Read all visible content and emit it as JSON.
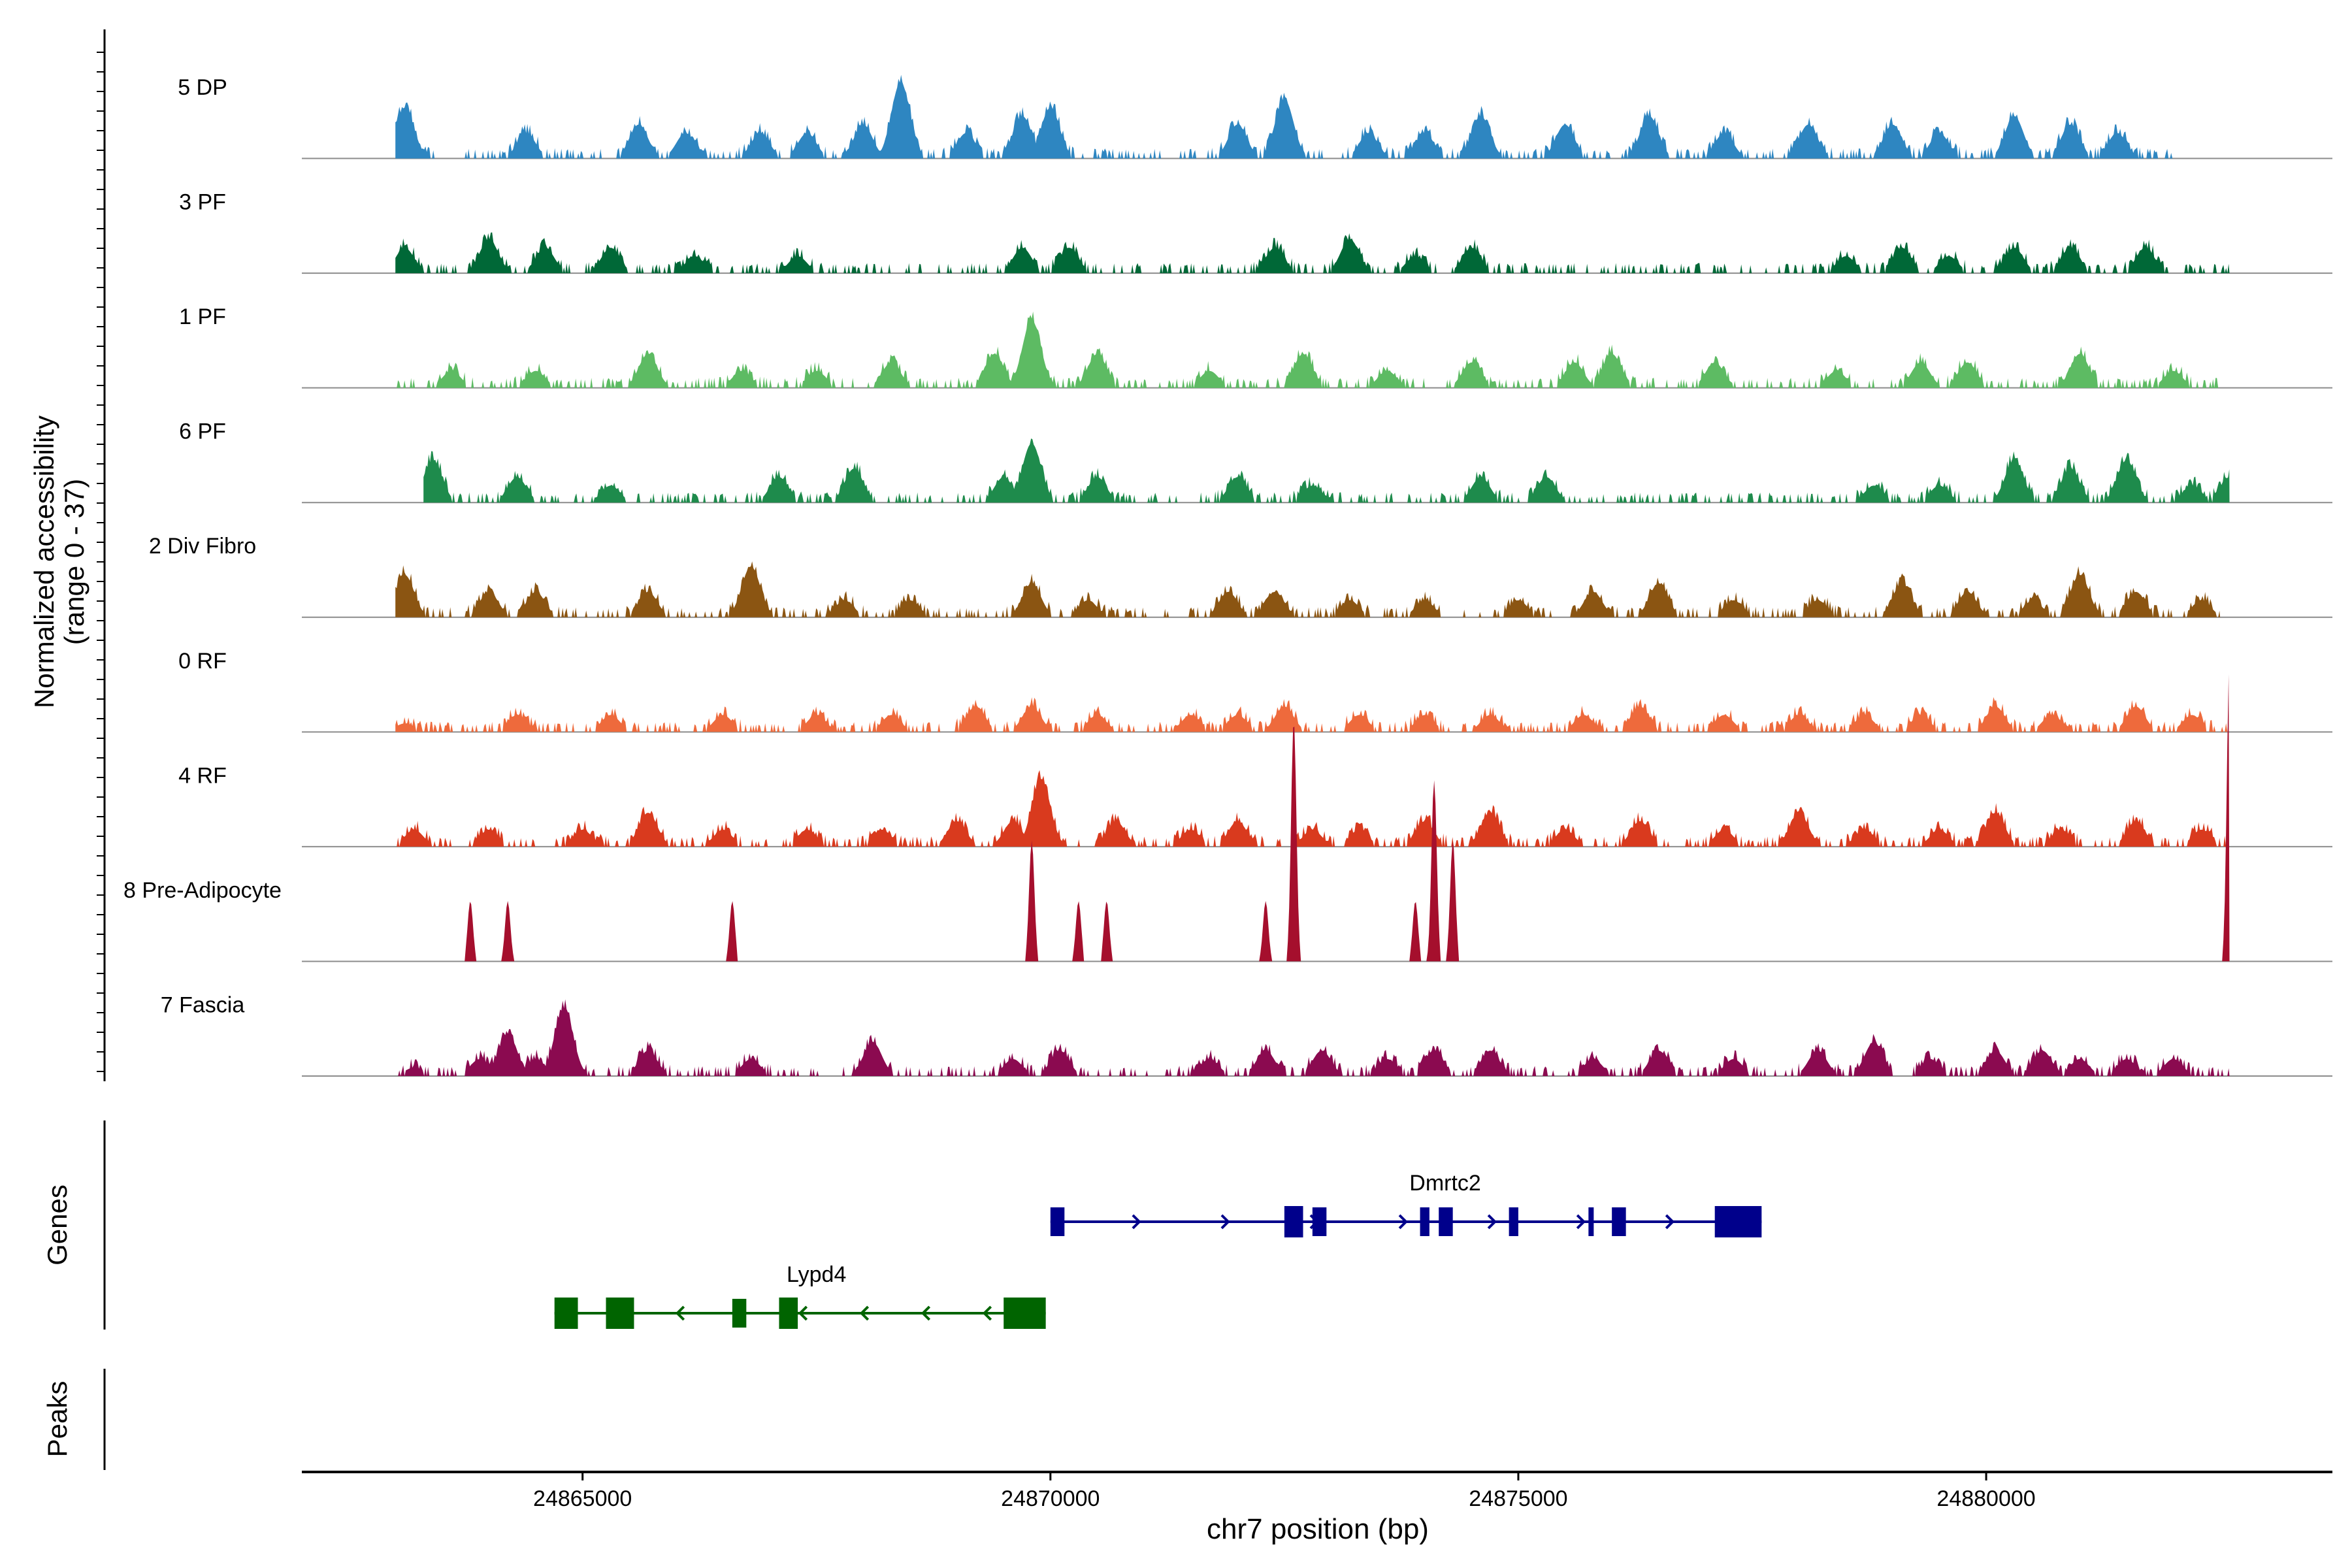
{
  "chart_data": {
    "type": "area",
    "title": "",
    "chromosome": "chr7",
    "xlabel": "chr7 position (bp)",
    "ylabel": "Normalized accessibility\n(range 0 - 37)",
    "xlim": [
      24862000,
      24883700
    ],
    "xticks": [
      24865000,
      24870000,
      24875000,
      24880000
    ],
    "ylim": [
      0,
      37
    ],
    "tracks": [
      {
        "name": "5 DP",
        "color": "#2E86C1",
        "start": 24863000,
        "peaks": [
          [
            24863100,
            6
          ],
          [
            24864400,
            3
          ],
          [
            24865600,
            4
          ],
          [
            24866100,
            3
          ],
          [
            24866900,
            3
          ],
          [
            24867400,
            3
          ],
          [
            24868000,
            4
          ],
          [
            24868400,
            9
          ],
          [
            24869100,
            3
          ],
          [
            24869700,
            5
          ],
          [
            24870000,
            6
          ],
          [
            24872000,
            4
          ],
          [
            24872500,
            7
          ],
          [
            24873400,
            3
          ],
          [
            24874000,
            3
          ],
          [
            24874600,
            5
          ],
          [
            24875500,
            4
          ],
          [
            24876400,
            5
          ],
          [
            24877200,
            3
          ],
          [
            24878100,
            4
          ],
          [
            24879000,
            4
          ],
          [
            24879500,
            3
          ],
          [
            24880300,
            5
          ],
          [
            24880900,
            4
          ],
          [
            24881400,
            3
          ]
        ],
        "end": 24882000
      },
      {
        "name": "3 PF",
        "color": "#006837",
        "start": 24863000,
        "peaks": [
          [
            24863100,
            3
          ],
          [
            24864000,
            4
          ],
          [
            24864600,
            3
          ],
          [
            24865300,
            3
          ],
          [
            24866200,
            2
          ],
          [
            24867300,
            2
          ],
          [
            24869700,
            3
          ],
          [
            24870200,
            3
          ],
          [
            24872400,
            3
          ],
          [
            24873200,
            4
          ],
          [
            24873900,
            2
          ],
          [
            24874500,
            3
          ],
          [
            24878500,
            2
          ],
          [
            24879100,
            3
          ],
          [
            24879600,
            2
          ],
          [
            24880300,
            3
          ],
          [
            24880900,
            3
          ],
          [
            24881700,
            3
          ]
        ],
        "end": 24882600
      },
      {
        "name": "1 PF",
        "color": "#5DBB63",
        "start": 24863000,
        "peaks": [
          [
            24863600,
            2
          ],
          [
            24864500,
            2
          ],
          [
            24865700,
            4
          ],
          [
            24866700,
            2
          ],
          [
            24867500,
            2
          ],
          [
            24868300,
            3
          ],
          [
            24869400,
            4
          ],
          [
            24869800,
            8
          ],
          [
            24870500,
            4
          ],
          [
            24871700,
            2
          ],
          [
            24872700,
            4
          ],
          [
            24873600,
            2
          ],
          [
            24874500,
            3
          ],
          [
            24875600,
            3
          ],
          [
            24876000,
            4
          ],
          [
            24877100,
            3
          ],
          [
            24878400,
            2
          ],
          [
            24879300,
            3
          ],
          [
            24879800,
            3
          ],
          [
            24881000,
            4
          ],
          [
            24882000,
            2
          ]
        ],
        "end": 24882600
      },
      {
        "name": "6 PF",
        "color": "#1E8B4C",
        "start": 24863300,
        "peaks": [
          [
            24863400,
            5
          ],
          [
            24864300,
            3
          ],
          [
            24865300,
            2
          ],
          [
            24867100,
            3
          ],
          [
            24867900,
            4
          ],
          [
            24869500,
            3
          ],
          [
            24869800,
            7
          ],
          [
            24870500,
            3
          ],
          [
            24872000,
            3
          ],
          [
            24872800,
            2
          ],
          [
            24874600,
            3
          ],
          [
            24875300,
            3
          ],
          [
            24878800,
            2
          ],
          [
            24879500,
            2
          ],
          [
            24880300,
            5
          ],
          [
            24880900,
            4
          ],
          [
            24881500,
            5
          ],
          [
            24882200,
            2
          ],
          [
            24882600,
            3
          ]
        ],
        "end": 24882600
      },
      {
        "name": "2 Div Fibro",
        "color": "#8B5512",
        "start": 24863000,
        "peaks": [
          [
            24863100,
            5
          ],
          [
            24864000,
            3
          ],
          [
            24864500,
            3
          ],
          [
            24865700,
            3
          ],
          [
            24866800,
            6
          ],
          [
            24867800,
            2
          ],
          [
            24868500,
            2
          ],
          [
            24869800,
            4
          ],
          [
            24870400,
            2
          ],
          [
            24871900,
            3
          ],
          [
            24872400,
            3
          ],
          [
            24873200,
            2
          ],
          [
            24874000,
            2
          ],
          [
            24875000,
            2
          ],
          [
            24875800,
            3
          ],
          [
            24876500,
            4
          ],
          [
            24877300,
            2
          ],
          [
            24878200,
            2
          ],
          [
            24879100,
            4
          ],
          [
            24879800,
            3
          ],
          [
            24880500,
            2
          ],
          [
            24881000,
            5
          ],
          [
            24881600,
            3
          ],
          [
            24882300,
            2
          ]
        ],
        "end": 24882500
      },
      {
        "name": "0 RF",
        "color": "#EE6A3C",
        "start": 24863000,
        "peaks": [
          [
            24863100,
            1
          ],
          [
            24864300,
            2
          ],
          [
            24865300,
            2
          ],
          [
            24866500,
            2
          ],
          [
            24867500,
            2
          ],
          [
            24868300,
            2
          ],
          [
            24869200,
            3
          ],
          [
            24869800,
            3
          ],
          [
            24870500,
            2
          ],
          [
            24871500,
            2
          ],
          [
            24872000,
            2
          ],
          [
            24872500,
            3
          ],
          [
            24873300,
            2
          ],
          [
            24874000,
            2
          ],
          [
            24874700,
            2
          ],
          [
            24875700,
            2
          ],
          [
            24876300,
            3
          ],
          [
            24877200,
            2
          ],
          [
            24878000,
            2
          ],
          [
            24878700,
            2
          ],
          [
            24879300,
            2
          ],
          [
            24880100,
            3
          ],
          [
            24880700,
            2
          ],
          [
            24881600,
            3
          ],
          [
            24882200,
            2
          ]
        ],
        "end": 24882600
      },
      {
        "name": "4 RF",
        "color": "#D93A1E",
        "start": 24863000,
        "peaks": [
          [
            24863200,
            2
          ],
          [
            24864000,
            2
          ],
          [
            24865000,
            2
          ],
          [
            24865700,
            4
          ],
          [
            24866500,
            2
          ],
          [
            24867400,
            2
          ],
          [
            24868200,
            2
          ],
          [
            24869000,
            3
          ],
          [
            24869600,
            3
          ],
          [
            24869900,
            8
          ],
          [
            24870700,
            3
          ],
          [
            24871500,
            2
          ],
          [
            24872000,
            3
          ],
          [
            24872800,
            2
          ],
          [
            24873300,
            2
          ],
          [
            24874000,
            3
          ],
          [
            24874700,
            4
          ],
          [
            24875500,
            2
          ],
          [
            24876300,
            3
          ],
          [
            24877200,
            2
          ],
          [
            24878000,
            4
          ],
          [
            24878700,
            2
          ],
          [
            24879500,
            2
          ],
          [
            24880100,
            4
          ],
          [
            24880800,
            2
          ],
          [
            24881600,
            3
          ],
          [
            24882300,
            2
          ]
        ],
        "end": 24882600
      },
      {
        "name": "8 Pre-Adipocyte",
        "color": "#A50F2D",
        "start": 24863600,
        "peaks": [
          [
            24863800,
            6
          ],
          [
            24864200,
            6
          ],
          [
            24866600,
            6
          ],
          [
            24869800,
            12
          ],
          [
            24870300,
            6
          ],
          [
            24870600,
            6
          ],
          [
            24872300,
            6
          ],
          [
            24872600,
            24
          ],
          [
            24873900,
            6
          ],
          [
            24874100,
            18
          ],
          [
            24874300,
            12
          ],
          [
            24882600,
            30
          ]
        ],
        "end": 24882600
      },
      {
        "name": "7 Fascia",
        "color": "#8B0A50",
        "start": 24863000,
        "peaks": [
          [
            24863200,
            1
          ],
          [
            24863900,
            2
          ],
          [
            24864200,
            5
          ],
          [
            24864500,
            2
          ],
          [
            24864800,
            8
          ],
          [
            24865700,
            3
          ],
          [
            24866800,
            2
          ],
          [
            24868100,
            4
          ],
          [
            24869600,
            2
          ],
          [
            24870100,
            3
          ],
          [
            24871700,
            2
          ],
          [
            24872300,
            3
          ],
          [
            24872900,
            3
          ],
          [
            24873600,
            2
          ],
          [
            24874100,
            3
          ],
          [
            24874700,
            3
          ],
          [
            24875800,
            2
          ],
          [
            24876500,
            3
          ],
          [
            24877300,
            2
          ],
          [
            24878200,
            3
          ],
          [
            24878800,
            4
          ],
          [
            24879400,
            2
          ],
          [
            24880100,
            3
          ],
          [
            24880600,
            3
          ],
          [
            24881000,
            2
          ],
          [
            24881500,
            2
          ],
          [
            24882000,
            2
          ]
        ],
        "end": 24882600
      }
    ],
    "genes": [
      {
        "name": "Dmrtc2",
        "strand": "+",
        "color": "#00008B",
        "start": 24870000,
        "end": 24877600,
        "exons": [
          [
            24870000,
            24870150
          ],
          [
            24872500,
            24872700
          ],
          [
            24872800,
            24872950
          ],
          [
            24873950,
            24874050
          ],
          [
            24874150,
            24874300
          ],
          [
            24874900,
            24875000
          ],
          [
            24875750,
            24875800
          ],
          [
            24876000,
            24876150
          ],
          [
            24877100,
            24877600
          ]
        ]
      },
      {
        "name": "Lypd4",
        "strand": "-",
        "color": "#006400",
        "start": 24864700,
        "end": 24869950,
        "exons": [
          [
            24864700,
            24864950
          ],
          [
            24865250,
            24865550
          ],
          [
            24866600,
            24866750
          ],
          [
            24867100,
            24867300
          ],
          [
            24869500,
            24869950
          ]
        ]
      }
    ],
    "panels": {
      "genes_label": "Genes",
      "peaks_label": "Peaks"
    }
  }
}
